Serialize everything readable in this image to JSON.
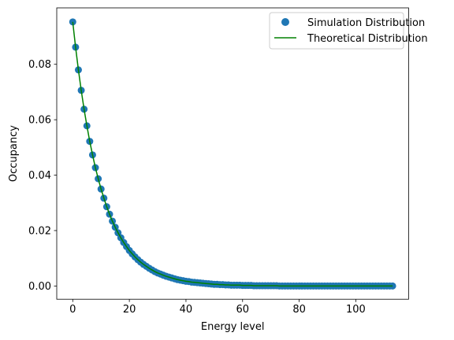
{
  "chart_data": {
    "type": "scatter",
    "title": "",
    "xlabel": "Energy level",
    "ylabel": "Occupancy",
    "xlim": [
      -5.65,
      118.65
    ],
    "ylim": [
      -0.00478,
      0.10037
    ],
    "xticks": [
      0,
      20,
      40,
      60,
      80,
      100
    ],
    "xtick_labels": [
      "0",
      "20",
      "40",
      "60",
      "80",
      "100"
    ],
    "yticks": [
      0.0,
      0.02,
      0.04,
      0.06,
      0.08
    ],
    "ytick_labels": [
      "0.00",
      "0.02",
      "0.04",
      "0.06",
      "0.08"
    ],
    "grid": false,
    "legend_position": "top-right",
    "series": [
      {
        "name": "Simulation Distribution",
        "kind": "scatter",
        "color": "#1f77b4",
        "x": [
          0,
          1,
          2,
          3,
          4,
          5,
          6,
          7,
          8,
          9,
          10,
          11,
          12,
          13,
          14,
          15,
          16,
          17,
          18,
          19,
          20,
          21,
          22,
          23,
          24,
          25,
          26,
          27,
          28,
          29,
          30,
          31,
          32,
          33,
          34,
          35,
          36,
          37,
          38,
          39,
          40,
          41,
          42,
          43,
          44,
          45,
          46,
          47,
          48,
          49,
          50,
          51,
          52,
          53,
          54,
          55,
          56,
          57,
          58,
          59,
          60,
          61,
          62,
          63,
          64,
          65,
          66,
          67,
          68,
          69,
          70,
          71,
          72,
          73,
          74,
          75,
          76,
          77,
          78,
          79,
          80,
          81,
          82,
          83,
          84,
          85,
          86,
          87,
          88,
          89,
          90,
          91,
          92,
          93,
          94,
          95,
          96,
          97,
          98,
          99,
          100,
          101,
          102,
          103,
          104,
          105,
          106,
          107,
          108,
          109,
          110,
          111,
          112,
          113
        ],
        "y": [
          0.0953,
          0.0862,
          0.078,
          0.0706,
          0.0638,
          0.0578,
          0.0522,
          0.0473,
          0.0427,
          0.0387,
          0.035,
          0.0317,
          0.0286,
          0.0259,
          0.0234,
          0.0212,
          0.0192,
          0.0174,
          0.0157,
          0.0142,
          0.0128,
          0.0116,
          0.0105,
          0.0095,
          0.0086,
          0.0078,
          0.0071,
          0.0064,
          0.0058,
          0.0052,
          0.0047,
          0.0043,
          0.0039,
          0.0035,
          0.0032,
          0.0029,
          0.0026,
          0.0023,
          0.0021,
          0.0019,
          0.0017,
          0.0016,
          0.0014,
          0.0013,
          0.0012,
          0.0011,
          0.001,
          0.0009,
          0.0008,
          0.0007,
          0.0006,
          0.0006,
          0.0005,
          0.0005,
          0.0004,
          0.0004,
          0.0003,
          0.0003,
          0.0003,
          0.0003,
          0.0002,
          0.0002,
          0.0002,
          0.0002,
          0.0001,
          0.0001,
          0.0001,
          0.0001,
          0.0001,
          0.0001,
          0.0001,
          0.0001,
          0.0001,
          0,
          0,
          0,
          0,
          0,
          0,
          0,
          0,
          0,
          0,
          0,
          0,
          0,
          0,
          0,
          0,
          0,
          0,
          0,
          0,
          0,
          0,
          0,
          0,
          0,
          0,
          0,
          0,
          0,
          0,
          0,
          0,
          0,
          0,
          0,
          0,
          0,
          0,
          0,
          0,
          0
        ]
      },
      {
        "name": "Theoretical Distribution",
        "kind": "line",
        "color": "#008000",
        "x": [
          0,
          1,
          2,
          3,
          4,
          5,
          6,
          7,
          8,
          9,
          10,
          11,
          12,
          13,
          14,
          15,
          16,
          17,
          18,
          19,
          20,
          21,
          22,
          23,
          24,
          25,
          26,
          27,
          28,
          29,
          30,
          31,
          32,
          33,
          34,
          35,
          36,
          37,
          38,
          39,
          40,
          41,
          42,
          43,
          44,
          45,
          46,
          47,
          48,
          49,
          50,
          51,
          52,
          53,
          54,
          55,
          56,
          57,
          58,
          59,
          60,
          61,
          62,
          63,
          64,
          65,
          66,
          67,
          68,
          69,
          70,
          71,
          72,
          73,
          74,
          75,
          76,
          77,
          78,
          79,
          80,
          81,
          82,
          83,
          84,
          85,
          86,
          87,
          88,
          89,
          90,
          91,
          92,
          93,
          94,
          95,
          96,
          97,
          98,
          99,
          100,
          101,
          102,
          103,
          104,
          105,
          106,
          107,
          108,
          109,
          110,
          111,
          112,
          113
        ],
        "y": [
          0.0953,
          0.0862,
          0.078,
          0.0706,
          0.0638,
          0.0578,
          0.0522,
          0.0473,
          0.0427,
          0.0387,
          0.035,
          0.0317,
          0.0286,
          0.0259,
          0.0234,
          0.0212,
          0.0192,
          0.0174,
          0.0157,
          0.0142,
          0.0128,
          0.0116,
          0.0105,
          0.0095,
          0.0086,
          0.0078,
          0.0071,
          0.0064,
          0.0058,
          0.0052,
          0.0047,
          0.0043,
          0.0039,
          0.0035,
          0.0032,
          0.0029,
          0.0026,
          0.0023,
          0.0021,
          0.0019,
          0.0017,
          0.0016,
          0.0014,
          0.0013,
          0.0012,
          0.0011,
          0.001,
          0.0009,
          0.0008,
          0.0007,
          0.0006,
          0.0006,
          0.0005,
          0.0005,
          0.0004,
          0.0004,
          0.0003,
          0.0003,
          0.0003,
          0.0003,
          0.0002,
          0.0002,
          0.0002,
          0.0002,
          0.0001,
          0.0001,
          0.0001,
          0.0001,
          0.0001,
          0.0001,
          0.0001,
          0.0001,
          0.0001,
          0,
          0,
          0,
          0,
          0,
          0,
          0,
          0,
          0,
          0,
          0,
          0,
          0,
          0,
          0,
          0,
          0,
          0,
          0,
          0,
          0,
          0,
          0,
          0,
          0,
          0,
          0,
          0,
          0,
          0,
          0,
          0,
          0,
          0,
          0,
          0,
          0,
          0,
          0,
          0,
          0
        ]
      }
    ]
  }
}
